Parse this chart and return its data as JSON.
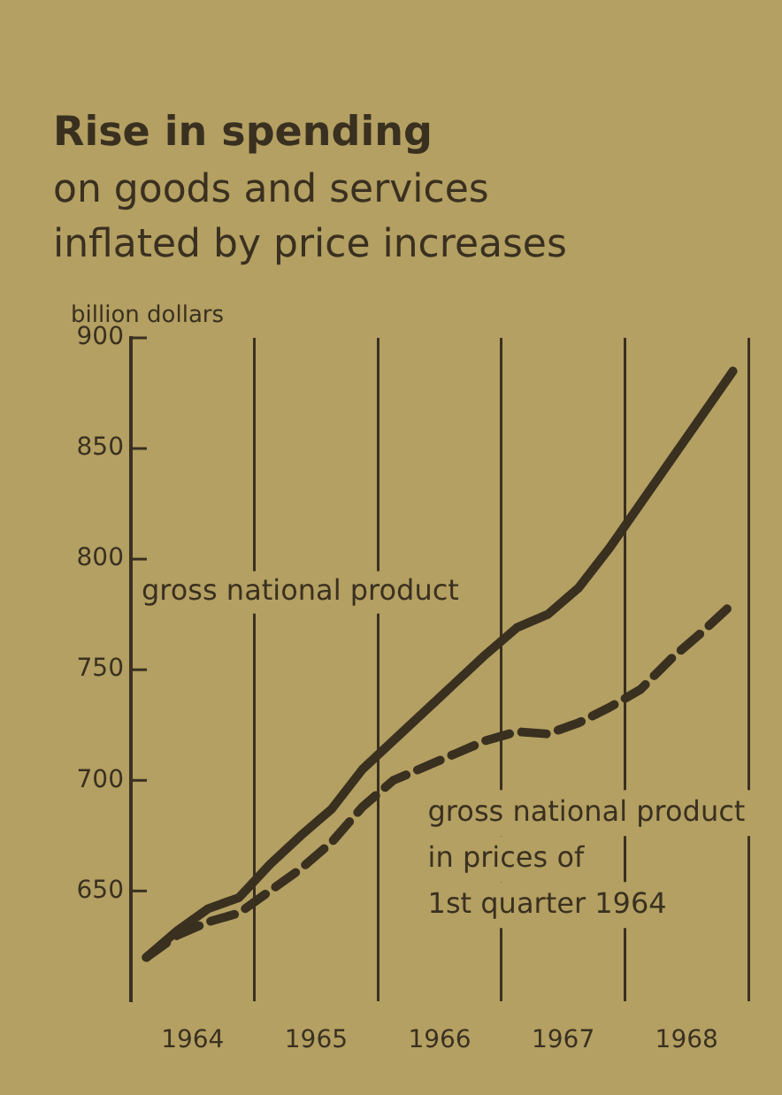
{
  "chart_data": {
    "type": "line",
    "title": "Rise in spending",
    "subtitle": "on goods and services\ninflated by price increases",
    "ylabel": "billion dollars",
    "x": [
      1964.125,
      1964.375,
      1964.625,
      1964.875,
      1965.125,
      1965.375,
      1965.625,
      1965.875,
      1966.125,
      1966.375,
      1966.625,
      1966.875,
      1967.125,
      1967.375,
      1967.625,
      1967.875,
      1968.125,
      1968.375,
      1968.625,
      1968.875
    ],
    "series": [
      {
        "name": "gross national product",
        "color": "#3a3020",
        "line_style": "solid",
        "values": [
          620,
          632,
          642,
          647,
          662,
          675,
          687,
          705,
          718,
          731,
          744,
          757,
          769,
          775,
          787,
          805,
          825,
          845,
          865,
          885
        ]
      },
      {
        "name": "gross national product\nin prices of\n1st quarter 1964",
        "color": "#3a3020",
        "line_style": "dashed",
        "values": [
          620,
          630,
          636,
          640,
          650,
          660,
          672,
          688,
          700,
          706,
          712,
          718,
          722,
          721,
          726,
          733,
          741,
          755,
          767,
          780
        ]
      }
    ],
    "xlim": [
      1964,
      1969
    ],
    "xticks": [
      {
        "value": 1964.5,
        "label": "1964"
      },
      {
        "value": 1965,
        "label": null
      },
      {
        "value": 1965.5,
        "label": "1965"
      },
      {
        "value": 1966,
        "label": null
      },
      {
        "value": 1966.5,
        "label": "1966"
      },
      {
        "value": 1967,
        "label": null
      },
      {
        "value": 1967.5,
        "label": "1967"
      },
      {
        "value": 1968,
        "label": null
      },
      {
        "value": 1968.5,
        "label": "1968"
      },
      {
        "value": 1969,
        "label": null
      }
    ],
    "ylim": [
      600,
      900
    ],
    "yticks": [
      650,
      700,
      750,
      800,
      850,
      900
    ],
    "grid": "x",
    "legend": false,
    "marker": "none"
  }
}
